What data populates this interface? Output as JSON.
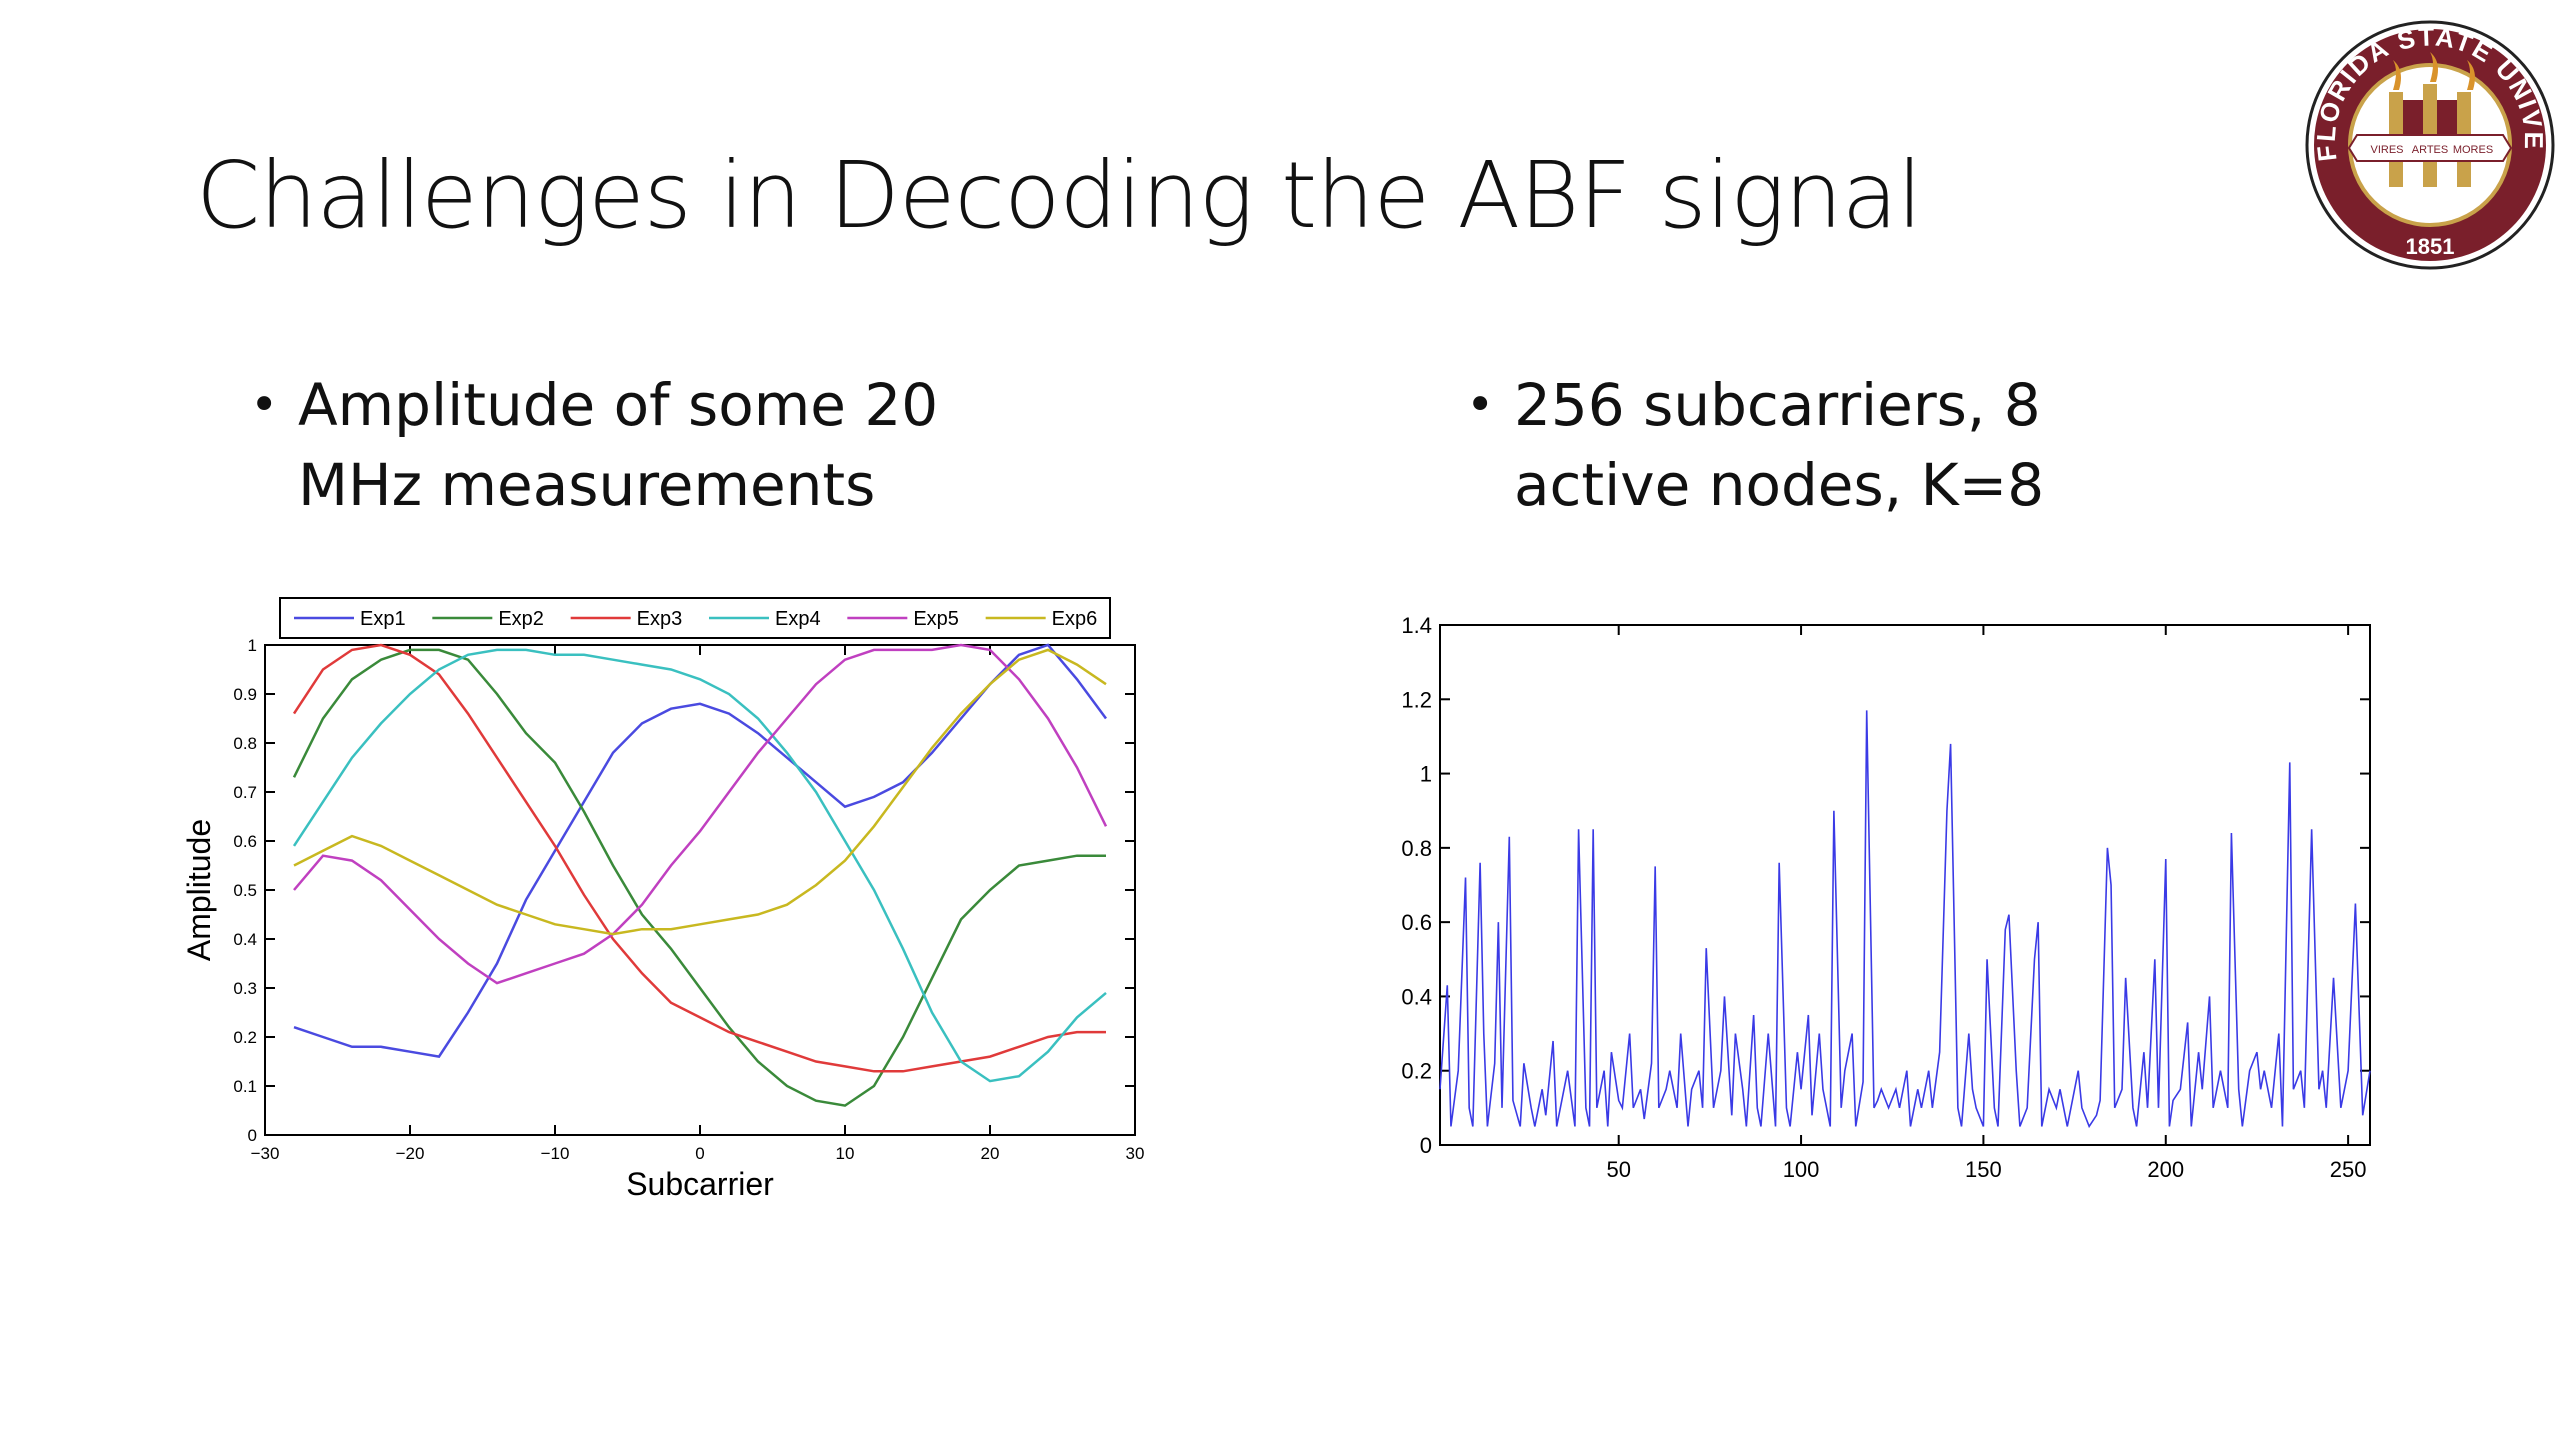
{
  "slide": {
    "title": "Challenges in Decoding the ABF signal",
    "bullets": [
      {
        "text": "Amplitude of some 20 MHz measurements"
      },
      {
        "text": "256 subcarriers, 8 active nodes, K=8"
      }
    ]
  },
  "logo": {
    "ring_text": "FLORIDA STATE UNIVERSITY",
    "year": "1851",
    "scroll_words": [
      "VIRES",
      "ARTES",
      "MORES"
    ],
    "colors": {
      "garnet": "#7a1f2b",
      "gold": "#c9a24a"
    }
  },
  "chart_data": [
    {
      "type": "line",
      "xlabel": "Subcarrier",
      "ylabel": "Amplitude",
      "xlim": [
        -30,
        30
      ],
      "ylim": [
        0,
        1
      ],
      "xticks": [
        "−30",
        "−20",
        "−10",
        "0",
        "10",
        "20",
        "30"
      ],
      "yticks": [
        "0",
        "0.1",
        "0.2",
        "0.3",
        "0.4",
        "0.5",
        "0.6",
        "0.7",
        "0.8",
        "0.9",
        "1"
      ],
      "legend_position": "top",
      "x": [
        -28,
        -26,
        -24,
        -22,
        -20,
        -18,
        -16,
        -14,
        -12,
        -10,
        -8,
        -6,
        -4,
        -2,
        0,
        2,
        4,
        6,
        8,
        10,
        12,
        14,
        16,
        18,
        20,
        22,
        24,
        26,
        28
      ],
      "series": [
        {
          "name": "Exp1",
          "color": "#4a4ae0",
          "values": [
            0.22,
            0.2,
            0.18,
            0.18,
            0.17,
            0.16,
            0.25,
            0.35,
            0.48,
            0.58,
            0.68,
            0.78,
            0.84,
            0.87,
            0.88,
            0.86,
            0.82,
            0.77,
            0.72,
            0.67,
            0.69,
            0.72,
            0.78,
            0.85,
            0.92,
            0.98,
            1.0,
            0.93,
            0.85
          ]
        },
        {
          "name": "Exp2",
          "color": "#3a8a3a",
          "values": [
            0.73,
            0.85,
            0.93,
            0.97,
            0.99,
            0.99,
            0.97,
            0.9,
            0.82,
            0.76,
            0.66,
            0.55,
            0.45,
            0.38,
            0.3,
            0.22,
            0.15,
            0.1,
            0.07,
            0.06,
            0.1,
            0.2,
            0.32,
            0.44,
            0.5,
            0.55,
            0.56,
            0.57,
            0.57
          ]
        },
        {
          "name": "Exp3",
          "color": "#e03a3a",
          "values": [
            0.86,
            0.95,
            0.99,
            1.0,
            0.98,
            0.94,
            0.86,
            0.77,
            0.68,
            0.59,
            0.49,
            0.4,
            0.33,
            0.27,
            0.24,
            0.21,
            0.19,
            0.17,
            0.15,
            0.14,
            0.13,
            0.13,
            0.14,
            0.15,
            0.16,
            0.18,
            0.2,
            0.21,
            0.21
          ]
        },
        {
          "name": "Exp4",
          "color": "#3ac0c0",
          "values": [
            0.59,
            0.68,
            0.77,
            0.84,
            0.9,
            0.95,
            0.98,
            0.99,
            0.99,
            0.98,
            0.98,
            0.97,
            0.96,
            0.95,
            0.93,
            0.9,
            0.85,
            0.78,
            0.7,
            0.6,
            0.5,
            0.38,
            0.25,
            0.15,
            0.11,
            0.12,
            0.17,
            0.24,
            0.29
          ]
        },
        {
          "name": "Exp5",
          "color": "#c040c0",
          "values": [
            0.5,
            0.57,
            0.56,
            0.52,
            0.46,
            0.4,
            0.35,
            0.31,
            0.33,
            0.35,
            0.37,
            0.41,
            0.47,
            0.55,
            0.62,
            0.7,
            0.78,
            0.85,
            0.92,
            0.97,
            0.99,
            0.99,
            0.99,
            1.0,
            0.99,
            0.93,
            0.85,
            0.75,
            0.63
          ]
        },
        {
          "name": "Exp6",
          "color": "#c8b820",
          "values": [
            0.55,
            0.58,
            0.61,
            0.59,
            0.56,
            0.53,
            0.5,
            0.47,
            0.45,
            0.43,
            0.42,
            0.41,
            0.42,
            0.42,
            0.43,
            0.44,
            0.45,
            0.47,
            0.51,
            0.56,
            0.63,
            0.71,
            0.79,
            0.86,
            0.92,
            0.97,
            0.99,
            0.96,
            0.92
          ]
        }
      ]
    },
    {
      "type": "line",
      "xlim": [
        1,
        256
      ],
      "ylim": [
        0,
        1.4
      ],
      "xticks": [
        "50",
        "100",
        "150",
        "200",
        "250"
      ],
      "yticks": [
        "0",
        "0.2",
        "0.4",
        "0.6",
        "0.8",
        "1",
        "1.2",
        "1.4"
      ],
      "series": [
        {
          "color": "#3a3ae6",
          "x": [
            1,
            3,
            4,
            6,
            8,
            9,
            10,
            12,
            13,
            14,
            16,
            17,
            18,
            20,
            21,
            23,
            24,
            26,
            27,
            29,
            30,
            32,
            33,
            34,
            36,
            38,
            39,
            41,
            42,
            43,
            44,
            46,
            47,
            48,
            50,
            51,
            53,
            54,
            56,
            57,
            59,
            60,
            61,
            63,
            64,
            66,
            67,
            69,
            70,
            72,
            73,
            74,
            76,
            78,
            79,
            81,
            82,
            84,
            85,
            87,
            88,
            89,
            91,
            93,
            94,
            96,
            97,
            99,
            100,
            102,
            103,
            105,
            106,
            108,
            109,
            111,
            112,
            114,
            115,
            117,
            118,
            120,
            121,
            122,
            124,
            126,
            127,
            129,
            130,
            132,
            133,
            135,
            136,
            138,
            140,
            141,
            143,
            144,
            146,
            147,
            148,
            150,
            151,
            153,
            154,
            156,
            157,
            159,
            160,
            162,
            164,
            165,
            166,
            168,
            170,
            171,
            173,
            174,
            176,
            177,
            179,
            181,
            182,
            184,
            185,
            186,
            188,
            189,
            191,
            192,
            194,
            195,
            197,
            198,
            200,
            201,
            202,
            204,
            206,
            207,
            209,
            210,
            212,
            213,
            215,
            217,
            218,
            220,
            221,
            223,
            225,
            226,
            227,
            229,
            231,
            232,
            234,
            235,
            237,
            238,
            240,
            242,
            243,
            244,
            246,
            248,
            249,
            250,
            252,
            254,
            256
          ],
          "values": [
            0.15,
            0.43,
            0.05,
            0.2,
            0.72,
            0.1,
            0.05,
            0.76,
            0.3,
            0.05,
            0.22,
            0.6,
            0.1,
            0.83,
            0.12,
            0.05,
            0.22,
            0.1,
            0.05,
            0.15,
            0.08,
            0.28,
            0.05,
            0.1,
            0.2,
            0.05,
            0.85,
            0.1,
            0.05,
            0.85,
            0.1,
            0.2,
            0.05,
            0.25,
            0.12,
            0.1,
            0.3,
            0.1,
            0.15,
            0.07,
            0.22,
            0.75,
            0.1,
            0.15,
            0.2,
            0.1,
            0.3,
            0.05,
            0.15,
            0.2,
            0.1,
            0.53,
            0.1,
            0.2,
            0.4,
            0.08,
            0.3,
            0.15,
            0.05,
            0.35,
            0.1,
            0.05,
            0.3,
            0.05,
            0.76,
            0.1,
            0.05,
            0.25,
            0.15,
            0.35,
            0.08,
            0.3,
            0.15,
            0.05,
            0.9,
            0.1,
            0.2,
            0.3,
            0.05,
            0.17,
            1.17,
            0.1,
            0.12,
            0.15,
            0.1,
            0.15,
            0.1,
            0.2,
            0.05,
            0.15,
            0.1,
            0.2,
            0.1,
            0.25,
            0.9,
            1.08,
            0.1,
            0.05,
            0.3,
            0.15,
            0.1,
            0.05,
            0.5,
            0.1,
            0.05,
            0.58,
            0.62,
            0.2,
            0.05,
            0.1,
            0.5,
            0.6,
            0.05,
            0.15,
            0.1,
            0.15,
            0.05,
            0.1,
            0.2,
            0.1,
            0.05,
            0.08,
            0.12,
            0.8,
            0.7,
            0.1,
            0.15,
            0.45,
            0.1,
            0.05,
            0.25,
            0.1,
            0.5,
            0.1,
            0.77,
            0.05,
            0.12,
            0.15,
            0.33,
            0.05,
            0.25,
            0.15,
            0.4,
            0.1,
            0.2,
            0.1,
            0.84,
            0.15,
            0.05,
            0.2,
            0.25,
            0.15,
            0.2,
            0.1,
            0.3,
            0.05,
            1.03,
            0.15,
            0.2,
            0.1,
            0.85,
            0.15,
            0.2,
            0.1,
            0.45,
            0.1,
            0.15,
            0.2,
            0.65,
            0.08,
            0.2
          ]
        }
      ]
    }
  ]
}
